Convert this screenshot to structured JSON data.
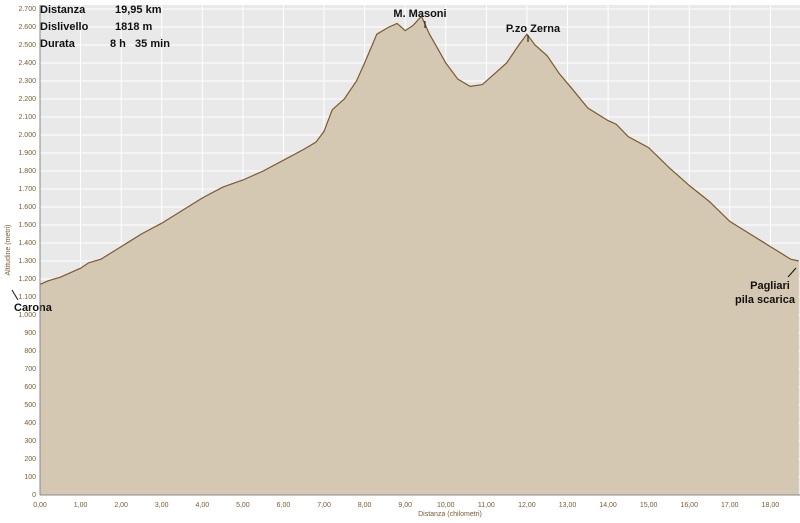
{
  "chart_data": {
    "type": "area",
    "summary": [
      {
        "label": "Distanza",
        "value": "19,95 km"
      },
      {
        "label": "Dislivello",
        "value": "1818 m"
      },
      {
        "label": "Durata",
        "value": "8 h   35 min"
      }
    ],
    "x_label": "Distanza (chilometri)",
    "y_label": "Altitudine (metri)",
    "annotations": [
      "M. Masoni",
      "P.zo Zerna",
      "Carona",
      "Pagliari",
      "pila scarica"
    ],
    "x": [
      0,
      0.2,
      0.5,
      1.0,
      1.2,
      1.5,
      2.0,
      2.5,
      3.0,
      3.5,
      4.0,
      4.5,
      5.0,
      5.5,
      6.0,
      6.5,
      6.8,
      7.0,
      7.2,
      7.5,
      7.8,
      8.0,
      8.3,
      8.6,
      8.8,
      9.0,
      9.2,
      9.4,
      9.6,
      9.8,
      10.0,
      10.3,
      10.6,
      10.9,
      11.2,
      11.5,
      11.8,
      12.0,
      12.2,
      12.5,
      12.8,
      13.1,
      13.5,
      14.0,
      14.2,
      14.5,
      15.0,
      15.5,
      16.0,
      16.5,
      17.0,
      17.5,
      18.0,
      18.5,
      18.7
    ],
    "values": [
      1170,
      1190,
      1210,
      1260,
      1290,
      1310,
      1380,
      1450,
      1510,
      1580,
      1650,
      1710,
      1750,
      1800,
      1860,
      1920,
      1960,
      2020,
      2140,
      2200,
      2300,
      2400,
      2560,
      2600,
      2620,
      2580,
      2610,
      2660,
      2560,
      2480,
      2400,
      2310,
      2270,
      2280,
      2340,
      2400,
      2500,
      2560,
      2500,
      2440,
      2340,
      2260,
      2150,
      2080,
      2060,
      1990,
      1930,
      1820,
      1720,
      1630,
      1520,
      1450,
      1380,
      1310,
      1300
    ],
    "fill_color": "#d5c8b3",
    "line_color": "#7a5a30",
    "xlim": [
      0,
      18.73
    ],
    "ylim": [
      0,
      2700
    ],
    "xticks": [
      {
        "value": 0,
        "label": "0,00"
      },
      {
        "value": 1,
        "label": "1,00"
      },
      {
        "value": 2,
        "label": "2,00"
      },
      {
        "value": 3,
        "label": "3,00"
      },
      {
        "value": 4,
        "label": "4,00"
      },
      {
        "value": 5,
        "label": "5,00"
      },
      {
        "value": 6,
        "label": "6,00"
      },
      {
        "value": 7,
        "label": "7,00"
      },
      {
        "value": 8,
        "label": "8,00"
      },
      {
        "value": 9,
        "label": "9,00"
      },
      {
        "value": 10,
        "label": "10,00"
      },
      {
        "value": 11,
        "label": "11,00"
      },
      {
        "value": 12,
        "label": "12,00"
      },
      {
        "value": 13,
        "label": "13,00"
      },
      {
        "value": 14,
        "label": "14,00"
      },
      {
        "value": 15,
        "label": "15,00"
      },
      {
        "value": 16,
        "label": "16,00"
      },
      {
        "value": 17,
        "label": "17,00"
      },
      {
        "value": 18,
        "label": "18,00"
      }
    ],
    "yticks": [
      0,
      100,
      200,
      300,
      400,
      500,
      600,
      700,
      800,
      900,
      {
        "value": 1000,
        "label": "1.000"
      },
      {
        "value": 1100,
        "label": "1.100"
      },
      {
        "value": 1200,
        "label": "1.200"
      },
      {
        "value": 1300,
        "label": "1.300"
      },
      {
        "value": 1400,
        "label": "1.400"
      },
      {
        "value": 1500,
        "label": "1.500"
      },
      {
        "value": 1600,
        "label": "1.600"
      },
      {
        "value": 1700,
        "label": "1.700"
      },
      {
        "value": 1800,
        "label": "1.800"
      },
      {
        "value": 1900,
        "label": "1.900"
      },
      {
        "value": 2000,
        "label": "2.000"
      },
      {
        "value": 2100,
        "label": "2.100"
      },
      {
        "value": 2200,
        "label": "2.200"
      },
      {
        "value": 2300,
        "label": "2.300"
      },
      {
        "value": 2400,
        "label": "2.400"
      },
      {
        "value": 2500,
        "label": "2.500"
      },
      {
        "value": 2600,
        "label": "2.600"
      },
      {
        "value": 2700,
        "label": "2.700"
      }
    ],
    "grid": true
  }
}
